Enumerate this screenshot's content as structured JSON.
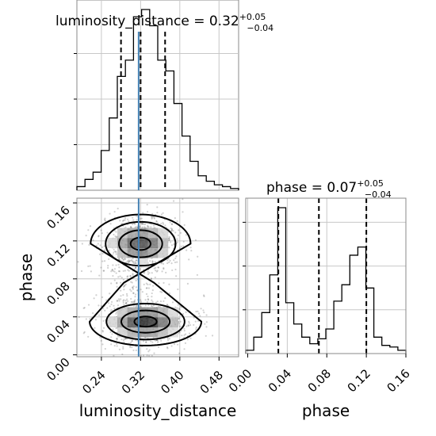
{
  "chart_data": [
    {
      "panel": "luminosity_distance marginal",
      "type": "histogram",
      "title_base": "luminosity_distance = 0.32",
      "title_sup": "+0.05",
      "title_sub": "−0.04",
      "x_range": [
        0.19,
        0.52
      ],
      "y_range": [
        0,
        1.0
      ],
      "bin_edges_start": 0.19,
      "bin_width": 0.0165,
      "heights": [
        0.02,
        0.06,
        0.1,
        0.22,
        0.4,
        0.63,
        0.72,
        0.96,
        1.0,
        0.91,
        0.72,
        0.66,
        0.48,
        0.3,
        0.16,
        0.08,
        0.05,
        0.03,
        0.02,
        0.01
      ],
      "quantile_lines": [
        0.28,
        0.32,
        0.37
      ],
      "truth": 0.316,
      "grid": true
    },
    {
      "panel": "phase marginal",
      "type": "histogram",
      "title_base": "phase = 0.07",
      "title_sup": "+0.05",
      "title_sub": "−0.04",
      "x_range": [
        -0.002,
        0.16
      ],
      "y_range": [
        0,
        1.0
      ],
      "bin_edges_start": -0.002,
      "bin_width": 0.0081,
      "heights": [
        0.02,
        0.1,
        0.25,
        0.48,
        0.89,
        0.31,
        0.18,
        0.1,
        0.06,
        0.09,
        0.15,
        0.32,
        0.42,
        0.6,
        0.65,
        0.4,
        0.1,
        0.05,
        0.04,
        0.02
      ],
      "quantile_lines": [
        0.031,
        0.072,
        0.12
      ],
      "truth": null,
      "grid": true,
      "xticks": [
        "0.00",
        "0.04",
        "0.08",
        "0.12",
        "0.16"
      ],
      "xtick_values": [
        0.0,
        0.04,
        0.08,
        0.12,
        0.16
      ],
      "xlabel": "phase"
    },
    {
      "panel": "2D joint",
      "type": "scatter_density_contour",
      "x_range": [
        0.19,
        0.52
      ],
      "y_range": [
        -0.002,
        0.165
      ],
      "truth_x": 0.316,
      "xlabel": "luminosity_distance",
      "ylabel": "phase",
      "xticks": [
        "0.24",
        "0.32",
        "0.40",
        "0.48"
      ],
      "xtick_values": [
        0.24,
        0.32,
        0.4,
        0.48
      ],
      "yticks": [
        "0.00",
        "0.04",
        "0.08",
        "0.12",
        "0.16"
      ],
      "ytick_values": [
        0.0,
        0.04,
        0.08,
        0.12,
        0.16
      ],
      "modes": [
        {
          "x": 0.32,
          "y": 0.117,
          "sx": 0.034,
          "sy": 0.011,
          "weight": 0.45
        },
        {
          "x": 0.33,
          "y": 0.035,
          "sx": 0.038,
          "sy": 0.009,
          "weight": 0.55
        }
      ],
      "grid": true
    }
  ]
}
